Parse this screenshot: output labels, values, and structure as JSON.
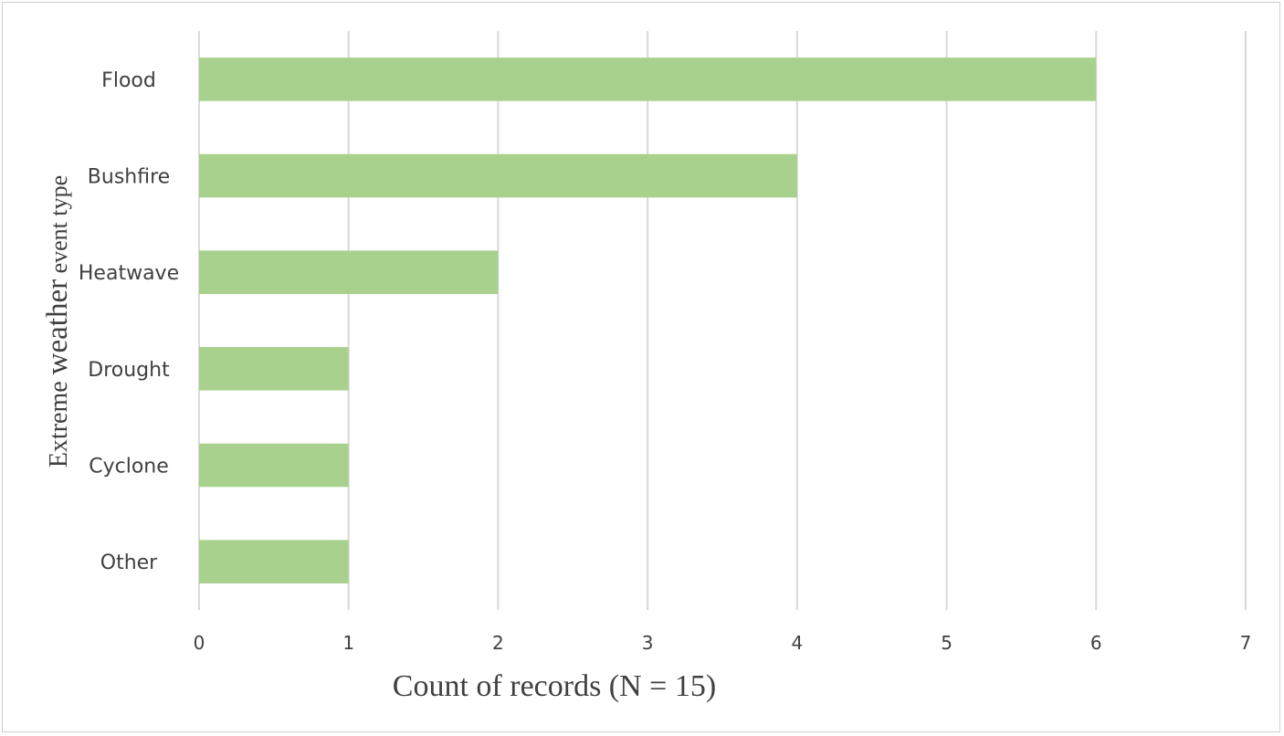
{
  "chart_data": {
    "type": "bar",
    "orientation": "horizontal",
    "categories": [
      "Flood",
      "Bushfire",
      "Heatwave",
      "Drought",
      "Cyclone",
      "Other"
    ],
    "values": [
      6,
      4,
      2,
      1,
      1,
      1
    ],
    "xlabel": "Count of records (N = 15)",
    "ylabel": {
      "part1": "Extreme ",
      "part2": "weather",
      "part3": " event type"
    },
    "xlim": [
      0,
      7
    ],
    "xticks": [
      "0",
      "1",
      "2",
      "3",
      "4",
      "5",
      "6",
      "7"
    ],
    "grid": "vertical",
    "bar_color": "#a9d18e",
    "grid_color": "#d9d9d9",
    "text_color": "#404040"
  }
}
